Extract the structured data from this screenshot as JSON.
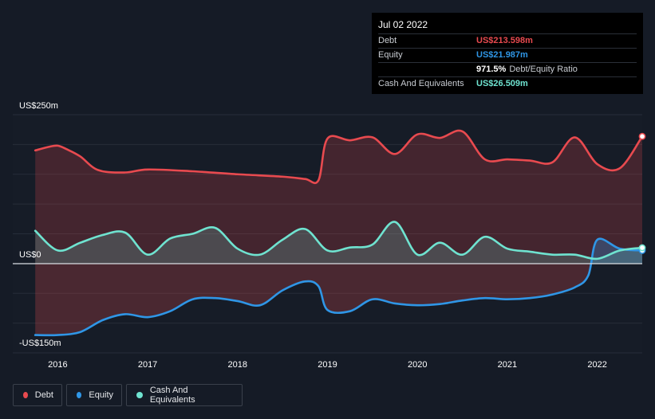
{
  "tooltip": {
    "date": "Jul 02 2022",
    "rows": [
      {
        "label": "Debt",
        "value": "US$213.598m",
        "color": "#e84a4f"
      },
      {
        "label": "Equity",
        "value": "US$21.987m",
        "color": "#2f96e6"
      },
      {
        "label": "",
        "value": "971.5%",
        "extra": "Debt/Equity Ratio",
        "color": "#ffffff"
      },
      {
        "label": "Cash And Equivalents",
        "value": "US$26.509m",
        "color": "#6fe3d0"
      }
    ]
  },
  "legend": [
    {
      "label": "Debt",
      "color": "#e84a4f"
    },
    {
      "label": "Equity",
      "color": "#2f96e6"
    },
    {
      "label": "Cash And Equivalents",
      "color": "#6fe3d0"
    }
  ],
  "chart_data": {
    "type": "area",
    "y_tick_labels": [
      "US$250m",
      "US$0",
      "-US$150m"
    ],
    "ylim": [
      -150,
      250
    ],
    "xlim": [
      2015.5,
      2022.5
    ],
    "x_ticks": [
      2016,
      2017,
      2018,
      2019,
      2020,
      2021,
      2022
    ],
    "x_tick_labels": [
      "2016",
      "2017",
      "2018",
      "2019",
      "2020",
      "2021",
      "2022"
    ],
    "grid": true,
    "legend_position": "bottom-left",
    "series": [
      {
        "name": "Debt",
        "color": "#e84a4f",
        "x": [
          2015.75,
          2015.9,
          2016.0,
          2016.1,
          2016.25,
          2016.45,
          2016.75,
          2017.0,
          2017.5,
          2018.0,
          2018.5,
          2018.75,
          2018.9,
          2019.0,
          2019.25,
          2019.5,
          2019.75,
          2020.0,
          2020.25,
          2020.5,
          2020.75,
          2021.0,
          2021.25,
          2021.5,
          2021.75,
          2022.0,
          2022.25,
          2022.5
        ],
        "y": [
          190,
          196,
          198,
          192,
          180,
          157,
          153,
          158,
          155,
          150,
          146,
          142,
          140,
          210,
          207,
          212,
          184,
          217,
          211,
          222,
          175,
          175,
          173,
          170,
          212,
          167,
          160,
          213.598
        ]
      },
      {
        "name": "Equity",
        "color": "#2f96e6",
        "x": [
          2015.75,
          2016.0,
          2016.25,
          2016.5,
          2016.75,
          2017.0,
          2017.25,
          2017.5,
          2017.75,
          2018.0,
          2018.25,
          2018.5,
          2018.75,
          2018.9,
          2019.0,
          2019.25,
          2019.5,
          2019.75,
          2020.0,
          2020.25,
          2020.5,
          2020.75,
          2021.0,
          2021.25,
          2021.5,
          2021.75,
          2021.9,
          2022.0,
          2022.25,
          2022.5
        ],
        "y": [
          -120,
          -120,
          -115,
          -95,
          -85,
          -90,
          -80,
          -60,
          -58,
          -63,
          -70,
          -45,
          -30,
          -38,
          -78,
          -80,
          -60,
          -67,
          -70,
          -68,
          -62,
          -58,
          -60,
          -58,
          -52,
          -40,
          -20,
          40,
          25,
          21.987
        ]
      },
      {
        "name": "Cash And Equivalents",
        "color": "#6fe3d0",
        "x": [
          2015.75,
          2016.0,
          2016.25,
          2016.5,
          2016.75,
          2017.0,
          2017.25,
          2017.5,
          2017.75,
          2018.0,
          2018.25,
          2018.5,
          2018.75,
          2019.0,
          2019.25,
          2019.5,
          2019.75,
          2020.0,
          2020.25,
          2020.5,
          2020.75,
          2021.0,
          2021.25,
          2021.5,
          2021.75,
          2022.0,
          2022.25,
          2022.5
        ],
        "y": [
          55,
          22,
          35,
          48,
          52,
          15,
          42,
          50,
          60,
          25,
          15,
          40,
          58,
          22,
          27,
          32,
          70,
          15,
          35,
          15,
          45,
          25,
          20,
          15,
          15,
          8,
          22,
          26.509
        ]
      }
    ]
  }
}
